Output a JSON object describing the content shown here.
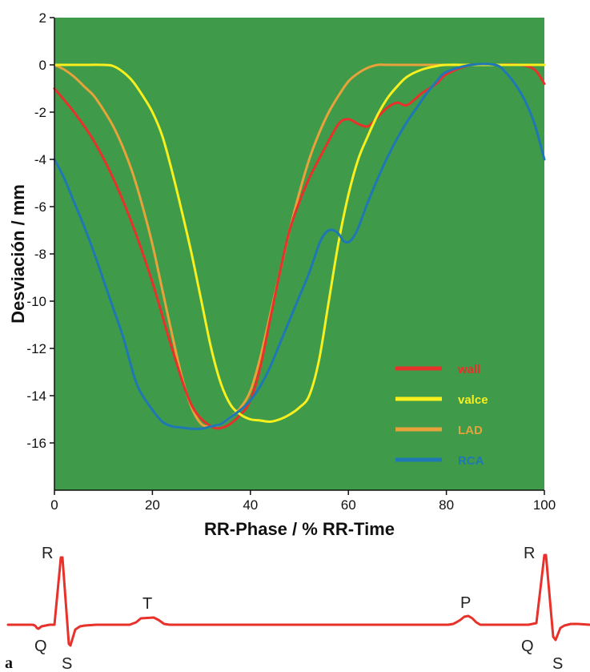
{
  "chart_data": {
    "type": "line",
    "xlabel": "RR-Phase / % RR-Time",
    "ylabel": "Desviación / mm",
    "xlim": [
      0,
      100
    ],
    "ylim": [
      -18,
      2
    ],
    "x_ticks": [
      "0",
      "20",
      "40",
      "60",
      "80",
      "100"
    ],
    "y_ticks": [
      "2",
      "0",
      "-2",
      "-4",
      "-6",
      "-8",
      "-10",
      "-12",
      "-14",
      "-16"
    ],
    "background_color": "#3f9a4a",
    "grid": false,
    "legend_position": "lower-right",
    "series": [
      {
        "name": "wall",
        "color": "#e8312a",
        "x": [
          0,
          4,
          8,
          12,
          16,
          20,
          24,
          28,
          32,
          35,
          38,
          40,
          42,
          44,
          46,
          48,
          50,
          52,
          55,
          58,
          60,
          62,
          64,
          66,
          68,
          70,
          72,
          75,
          78,
          80,
          85,
          90,
          95,
          98,
          100
        ],
        "y": [
          -1.0,
          -2.0,
          -3.2,
          -4.8,
          -6.8,
          -9.2,
          -12.0,
          -14.4,
          -15.3,
          -15.3,
          -14.8,
          -14.2,
          -12.8,
          -10.8,
          -8.8,
          -7.0,
          -5.8,
          -4.8,
          -3.6,
          -2.5,
          -2.3,
          -2.5,
          -2.6,
          -2.2,
          -1.8,
          -1.6,
          -1.7,
          -1.2,
          -0.8,
          -0.4,
          0,
          0,
          0,
          -0.2,
          -0.8
        ]
      },
      {
        "name": "valce",
        "color": "#f7ef1e",
        "x": [
          0,
          5,
          10,
          12,
          14,
          16,
          18,
          20,
          22,
          24,
          26,
          28,
          30,
          32,
          34,
          36,
          38,
          40,
          42,
          44,
          46,
          48,
          50,
          52,
          54,
          56,
          58,
          60,
          62,
          64,
          66,
          68,
          70,
          72,
          75,
          78,
          80,
          85,
          90,
          95,
          100
        ],
        "y": [
          0,
          0,
          0,
          -0.05,
          -0.3,
          -0.7,
          -1.3,
          -2.0,
          -3.0,
          -4.5,
          -6.2,
          -8.0,
          -10.0,
          -12.0,
          -13.5,
          -14.4,
          -14.8,
          -15.0,
          -15.05,
          -15.1,
          -15.0,
          -14.8,
          -14.5,
          -14.0,
          -12.5,
          -10.0,
          -7.5,
          -5.5,
          -4.0,
          -3.0,
          -2.1,
          -1.4,
          -0.9,
          -0.5,
          -0.2,
          -0.05,
          0,
          0,
          0,
          0,
          0
        ]
      },
      {
        "name": "LAD",
        "color": "#e8a23a",
        "x": [
          0,
          2,
          4,
          6,
          8,
          10,
          12,
          14,
          16,
          18,
          20,
          22,
          24,
          26,
          28,
          30,
          32,
          34,
          36,
          38,
          40,
          42,
          44,
          46,
          48,
          50,
          52,
          54,
          56,
          58,
          60,
          62,
          64,
          66,
          68,
          75,
          80,
          85,
          90,
          95,
          100
        ],
        "y": [
          0,
          -0.2,
          -0.5,
          -0.9,
          -1.3,
          -1.9,
          -2.6,
          -3.5,
          -4.6,
          -6.0,
          -7.6,
          -9.5,
          -11.4,
          -13.2,
          -14.5,
          -15.2,
          -15.3,
          -15.2,
          -14.9,
          -14.5,
          -13.8,
          -12.4,
          -10.6,
          -8.8,
          -7.0,
          -5.4,
          -4.0,
          -2.9,
          -2.0,
          -1.3,
          -0.7,
          -0.35,
          -0.12,
          0,
          0,
          0,
          0,
          0,
          0,
          0,
          0
        ]
      },
      {
        "name": "RCA",
        "color": "#1f78b4",
        "x": [
          0,
          2,
          4,
          6,
          8,
          10,
          12,
          14,
          16,
          17,
          18,
          20,
          22,
          24,
          26,
          28,
          30,
          32,
          34,
          36,
          38,
          40,
          42,
          44,
          46,
          48,
          50,
          52,
          54,
          55,
          56,
          57,
          58,
          59,
          60,
          61,
          62,
          64,
          66,
          68,
          70,
          72,
          74,
          76,
          78,
          80,
          85,
          90,
          92,
          94,
          96,
          98,
          100
        ],
        "y": [
          -4.0,
          -4.8,
          -5.8,
          -6.8,
          -7.9,
          -9.1,
          -10.3,
          -11.5,
          -13.0,
          -13.6,
          -14.0,
          -14.6,
          -15.1,
          -15.3,
          -15.35,
          -15.4,
          -15.4,
          -15.3,
          -15.2,
          -14.9,
          -14.6,
          -14.2,
          -13.6,
          -12.8,
          -11.8,
          -10.8,
          -9.8,
          -8.8,
          -7.6,
          -7.2,
          -7.0,
          -7.0,
          -7.15,
          -7.45,
          -7.5,
          -7.3,
          -6.9,
          -5.8,
          -4.8,
          -3.9,
          -3.1,
          -2.4,
          -1.8,
          -1.2,
          -0.7,
          -0.3,
          0,
          0,
          -0.3,
          -0.8,
          -1.5,
          -2.5,
          -4.0
        ]
      }
    ]
  },
  "ecg": {
    "labels": {
      "r1": "R",
      "q1": "Q",
      "s1": "S",
      "t": "T",
      "p": "P",
      "r2": "R",
      "q2": "Q",
      "s2": "S"
    },
    "trace_color": "#e8312a"
  },
  "panel_label": "a"
}
